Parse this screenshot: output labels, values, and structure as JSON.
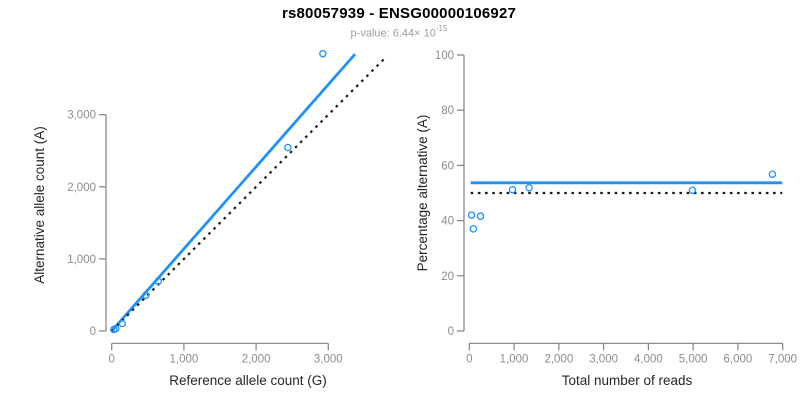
{
  "header": {
    "title": "rs80057939 - ENSG00000106927",
    "pvalue_main": "p-value: 6.44× 10",
    "pvalue_exponent": "-15"
  },
  "colors": {
    "accent_blue": "#1E90FF",
    "axis_line": "#808080",
    "tick_label": "#8C8C8C",
    "axis_title": "#262626",
    "title": "#000000",
    "subtitle": "#9E9E9E",
    "identity_line": "#1A1A1A",
    "background": "#FFFFFF"
  },
  "chart_data": [
    {
      "name": "allele-count-scatter",
      "type": "scatter",
      "title": "",
      "xlabel": "Reference allele count (G)",
      "ylabel": "Alternative allele count (A)",
      "xlim": [
        0,
        3000
      ],
      "ylim": [
        0,
        3900
      ],
      "grid": false,
      "legend": "none",
      "xticks": [
        {
          "v": 0,
          "label": "0"
        },
        {
          "v": 1000,
          "label": "1,000"
        },
        {
          "v": 2000,
          "label": "2,000"
        },
        {
          "v": 3000,
          "label": "3,000"
        }
      ],
      "yticks": [
        {
          "v": 0,
          "label": "0"
        },
        {
          "v": 1000,
          "label": "1,000"
        },
        {
          "v": 2000,
          "label": "2,000"
        },
        {
          "v": 3000,
          "label": "3,000"
        }
      ],
      "points": [
        [
          29,
          21
        ],
        [
          57,
          33
        ],
        [
          146,
          104
        ],
        [
          470,
          494
        ],
        [
          645,
          690
        ],
        [
          2440,
          2545
        ],
        [
          2925,
          3846
        ]
      ],
      "lines": [
        {
          "name": "fit-line",
          "points": [
            [
              0,
              0
            ],
            [
              3370,
              3840
            ]
          ],
          "color": "accent_blue",
          "width": 2.8,
          "dash": ""
        },
        {
          "name": "identity-line",
          "points": [
            [
              0,
              0
            ],
            [
              3790,
              3790
            ]
          ],
          "color": "identity_line",
          "width": 2.2,
          "dash": "2.6 4.6"
        }
      ]
    },
    {
      "name": "percentage-vs-reads-scatter",
      "type": "scatter",
      "title": "",
      "xlabel": "Total number of reads",
      "ylabel": "Percentage alternative (A)",
      "xlim": [
        0,
        7000
      ],
      "ylim": [
        0,
        100
      ],
      "grid": false,
      "legend": "none",
      "xticks": [
        {
          "v": 0,
          "label": "0"
        },
        {
          "v": 1000,
          "label": "1,000"
        },
        {
          "v": 2000,
          "label": "2,000"
        },
        {
          "v": 3000,
          "label": "3,000"
        },
        {
          "v": 4000,
          "label": "4,000"
        },
        {
          "v": 5000,
          "label": "5,000"
        },
        {
          "v": 6000,
          "label": "6,000"
        },
        {
          "v": 7000,
          "label": "7,000"
        }
      ],
      "yticks": [
        {
          "v": 0,
          "label": "0"
        },
        {
          "v": 20,
          "label": "20"
        },
        {
          "v": 40,
          "label": "40"
        },
        {
          "v": 60,
          "label": "60"
        },
        {
          "v": 80,
          "label": "80"
        },
        {
          "v": 100,
          "label": "100"
        }
      ],
      "points": [
        [
          50,
          42
        ],
        [
          90,
          37
        ],
        [
          250,
          41.6
        ],
        [
          964,
          51.2
        ],
        [
          1335,
          51.9
        ],
        [
          4985,
          51
        ],
        [
          6771,
          56.8
        ]
      ],
      "lines": [
        {
          "name": "mean-percentage-line",
          "points": [
            [
              30,
              53.7
            ],
            [
              6990,
              53.7
            ]
          ],
          "color": "accent_blue",
          "width": 2.8,
          "dash": ""
        },
        {
          "name": "fifty-percent-line",
          "points": [
            [
              30,
              50
            ],
            [
              6990,
              50
            ]
          ],
          "color": "identity_line",
          "width": 2.2,
          "dash": "2.6 4.6"
        }
      ]
    }
  ]
}
